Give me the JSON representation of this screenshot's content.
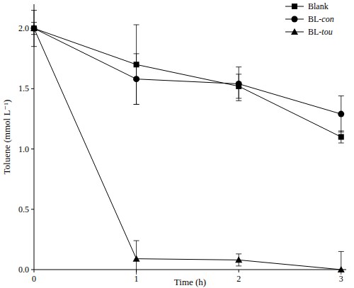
{
  "chart_data": {
    "type": "line",
    "x_label": "Time (h)",
    "y_label": "Toluene (mmol L⁻¹)",
    "x": [
      0,
      1,
      2,
      3
    ],
    "xlim": [
      0,
      3.05
    ],
    "xticks": [
      0,
      1,
      2,
      3
    ],
    "ylim": [
      0,
      2.2
    ],
    "yticks": [
      {
        "value": 0,
        "label": "0.0"
      },
      {
        "value": 0.5,
        "label": "0.5"
      },
      {
        "value": 1,
        "label": "1.0"
      },
      {
        "value": 1.5,
        "label": "1.5"
      },
      {
        "value": 2,
        "label": "2.0"
      }
    ],
    "legend": "top-right",
    "grid": false,
    "series": [
      {
        "name": "Blank",
        "color": "#000000",
        "marker": "square",
        "values": [
          2.0,
          1.7,
          1.52,
          1.1
        ],
        "errors": [
          0.15,
          0.33,
          0.1,
          0.05
        ]
      },
      {
        "name": "BL-con",
        "color": "#000000",
        "marker": "circle",
        "values": [
          2.0,
          1.58,
          1.54,
          1.29
        ],
        "errors": [
          0.05,
          0.21,
          0.14,
          0.15
        ]
      },
      {
        "name": "BL-tou",
        "color": "#000000",
        "marker": "triangle",
        "values": [
          2.0,
          0.09,
          0.08,
          0.0
        ],
        "errors": [
          0.02,
          0.15,
          0.05,
          0.15
        ]
      }
    ]
  }
}
